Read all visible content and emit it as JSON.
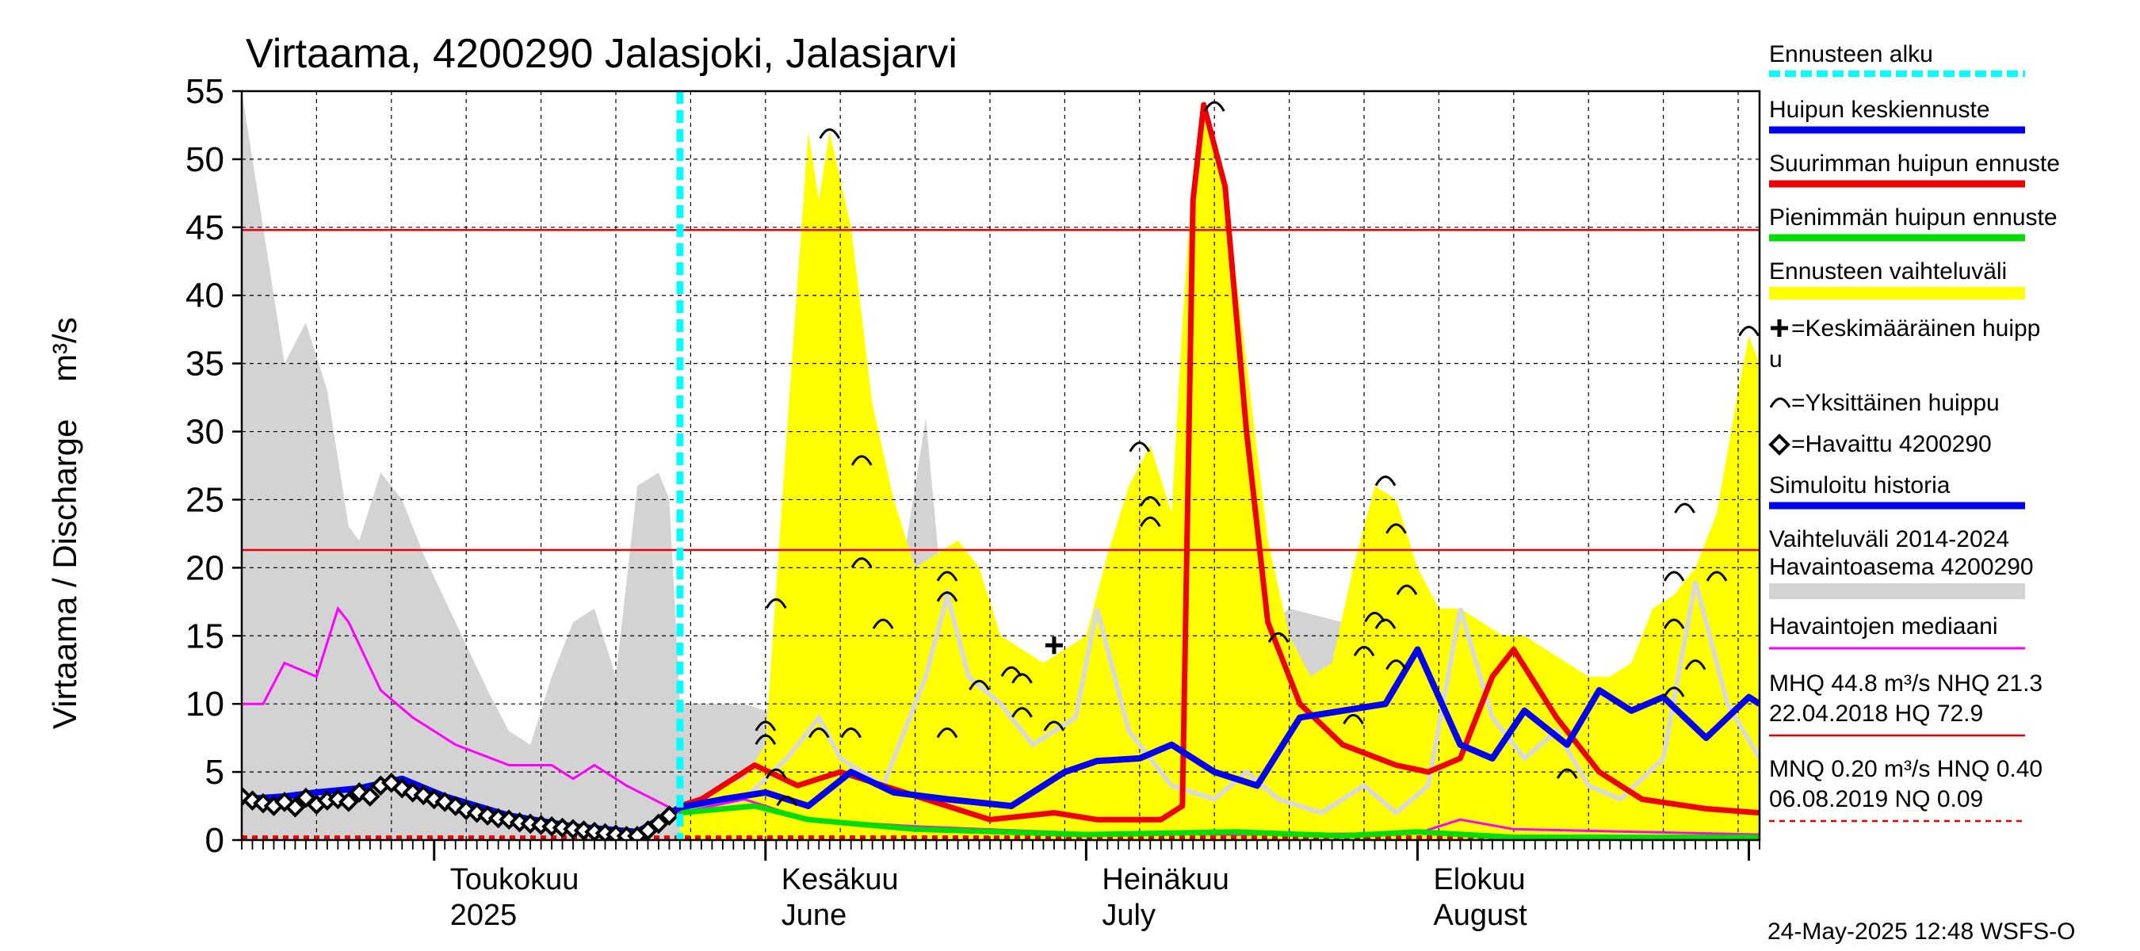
{
  "chart_data": {
    "type": "area",
    "title": "Virtaama, 4200290 Jalasjoki, Jalasjarvi",
    "ylabel": "Virtaama / Discharge    m³/s",
    "ylim": [
      0,
      55
    ],
    "y_ticks": [
      0,
      5,
      10,
      15,
      20,
      25,
      30,
      35,
      40,
      45,
      50,
      55
    ],
    "xlim": [
      "2025-04-13",
      "2025-09-02"
    ],
    "x_month_labels": [
      {
        "date": "2025-05-01",
        "line1": "Toukokuu",
        "line2": "2025"
      },
      {
        "date": "2025-06-01",
        "line1": "Kesäkuu",
        "line2": "June"
      },
      {
        "date": "2025-07-01",
        "line1": "Heinäkuu",
        "line2": "July"
      },
      {
        "date": "2025-08-01",
        "line1": "Elokuu",
        "line2": "August"
      }
    ],
    "grid": true,
    "forecast_start": "2025-05-24",
    "reference_lines": {
      "MHQ": 44.8,
      "NHQ": 21.3,
      "MNQ": 0.2
    },
    "history_range_2014_2024": [
      [
        "2025-04-13",
        55
      ],
      [
        "2025-04-15",
        45
      ],
      [
        "2025-04-17",
        35
      ],
      [
        "2025-04-19",
        38
      ],
      [
        "2025-04-21",
        33
      ],
      [
        "2025-04-23",
        23
      ],
      [
        "2025-04-24",
        22
      ],
      [
        "2025-04-26",
        27
      ],
      [
        "2025-04-28",
        25
      ],
      [
        "2025-04-30",
        21
      ],
      [
        "2025-05-03",
        16
      ],
      [
        "2025-05-06",
        11
      ],
      [
        "2025-05-08",
        8
      ],
      [
        "2025-05-10",
        7
      ],
      [
        "2025-05-12",
        12
      ],
      [
        "2025-05-14",
        16
      ],
      [
        "2025-05-16",
        17
      ],
      [
        "2025-05-18",
        12
      ],
      [
        "2025-05-20",
        26
      ],
      [
        "2025-05-22",
        27
      ],
      [
        "2025-05-23",
        25
      ],
      [
        "2025-05-24",
        10
      ],
      [
        "2025-05-27",
        10
      ],
      [
        "2025-05-30",
        10
      ],
      [
        "2025-06-03",
        9
      ],
      [
        "2025-06-07",
        8
      ],
      [
        "2025-06-10",
        13
      ],
      [
        "2025-06-12",
        22
      ],
      [
        "2025-06-14",
        21
      ],
      [
        "2025-06-16",
        31
      ],
      [
        "2025-06-18",
        14
      ],
      [
        "2025-06-22",
        12
      ],
      [
        "2025-06-26",
        10
      ],
      [
        "2025-07-01",
        14
      ],
      [
        "2025-07-05",
        22
      ],
      [
        "2025-07-10",
        18
      ],
      [
        "2025-07-15",
        14
      ],
      [
        "2025-07-20",
        17
      ],
      [
        "2025-07-25",
        16
      ],
      [
        "2025-07-30",
        12
      ],
      [
        "2025-08-05",
        10
      ],
      [
        "2025-08-10",
        8
      ],
      [
        "2025-08-15",
        11
      ],
      [
        "2025-08-20",
        7
      ],
      [
        "2025-08-25",
        6
      ],
      [
        "2025-09-02",
        4
      ]
    ],
    "forecast_range": [
      [
        "2025-05-24",
        1.8
      ],
      [
        "2025-05-26",
        3
      ],
      [
        "2025-05-28",
        4
      ],
      [
        "2025-05-30",
        4.5
      ],
      [
        "2025-06-01",
        7
      ],
      [
        "2025-06-03",
        30
      ],
      [
        "2025-06-05",
        52
      ],
      [
        "2025-06-06",
        47
      ],
      [
        "2025-06-07",
        52
      ],
      [
        "2025-06-09",
        45
      ],
      [
        "2025-06-11",
        32
      ],
      [
        "2025-06-13",
        25
      ],
      [
        "2025-06-15",
        20
      ],
      [
        "2025-06-17",
        21
      ],
      [
        "2025-06-19",
        22
      ],
      [
        "2025-06-21",
        20
      ],
      [
        "2025-06-23",
        15
      ],
      [
        "2025-06-25",
        14
      ],
      [
        "2025-06-27",
        13
      ],
      [
        "2025-06-29",
        14
      ],
      [
        "2025-07-01",
        15
      ],
      [
        "2025-07-03",
        21
      ],
      [
        "2025-07-05",
        26
      ],
      [
        "2025-07-07",
        29
      ],
      [
        "2025-07-09",
        24
      ],
      [
        "2025-07-10",
        38
      ],
      [
        "2025-07-11",
        49
      ],
      [
        "2025-07-12",
        54
      ],
      [
        "2025-07-14",
        48
      ],
      [
        "2025-07-16",
        35
      ],
      [
        "2025-07-18",
        22
      ],
      [
        "2025-07-20",
        15
      ],
      [
        "2025-07-22",
        12
      ],
      [
        "2025-07-24",
        13
      ],
      [
        "2025-07-26",
        20
      ],
      [
        "2025-07-28",
        26
      ],
      [
        "2025-07-30",
        25
      ],
      [
        "2025-08-01",
        20
      ],
      [
        "2025-08-03",
        17
      ],
      [
        "2025-08-05",
        17
      ],
      [
        "2025-08-07",
        16
      ],
      [
        "2025-08-09",
        15
      ],
      [
        "2025-08-11",
        15
      ],
      [
        "2025-08-13",
        14
      ],
      [
        "2025-08-15",
        13
      ],
      [
        "2025-08-17",
        12
      ],
      [
        "2025-08-19",
        12
      ],
      [
        "2025-08-21",
        13
      ],
      [
        "2025-08-23",
        17
      ],
      [
        "2025-08-25",
        18
      ],
      [
        "2025-08-27",
        20
      ],
      [
        "2025-08-29",
        24
      ],
      [
        "2025-08-31",
        33
      ],
      [
        "2025-09-01",
        37
      ],
      [
        "2025-09-02",
        35
      ]
    ],
    "observed": [
      [
        "2025-04-13",
        3.2
      ],
      [
        "2025-04-14",
        2.9
      ],
      [
        "2025-04-15",
        2.7
      ],
      [
        "2025-04-16",
        2.5
      ],
      [
        "2025-04-17",
        2.8
      ],
      [
        "2025-04-18",
        2.4
      ],
      [
        "2025-04-19",
        3.1
      ],
      [
        "2025-04-20",
        2.6
      ],
      [
        "2025-04-21",
        2.9
      ],
      [
        "2025-04-22",
        3.0
      ],
      [
        "2025-04-23",
        2.8
      ],
      [
        "2025-04-24",
        3.5
      ],
      [
        "2025-04-25",
        3.2
      ],
      [
        "2025-04-26",
        4.0
      ],
      [
        "2025-04-27",
        4.2
      ],
      [
        "2025-04-28",
        3.8
      ],
      [
        "2025-04-29",
        3.5
      ],
      [
        "2025-04-30",
        3.3
      ],
      [
        "2025-05-01",
        3.0
      ],
      [
        "2025-05-02",
        2.8
      ],
      [
        "2025-05-03",
        2.5
      ],
      [
        "2025-05-04",
        2.2
      ],
      [
        "2025-05-05",
        2.0
      ],
      [
        "2025-05-06",
        1.8
      ],
      [
        "2025-05-07",
        1.6
      ],
      [
        "2025-05-08",
        1.5
      ],
      [
        "2025-05-09",
        1.3
      ],
      [
        "2025-05-10",
        1.2
      ],
      [
        "2025-05-11",
        1.1
      ],
      [
        "2025-05-12",
        1.0
      ],
      [
        "2025-05-13",
        0.9
      ],
      [
        "2025-05-14",
        0.8
      ],
      [
        "2025-05-15",
        0.7
      ],
      [
        "2025-05-16",
        0.6
      ],
      [
        "2025-05-17",
        0.5
      ],
      [
        "2025-05-18",
        0.4
      ],
      [
        "2025-05-19",
        0.3
      ],
      [
        "2025-05-20",
        0.3
      ],
      [
        "2025-05-21",
        0.7
      ],
      [
        "2025-05-22",
        1.2
      ],
      [
        "2025-05-23",
        1.8
      ]
    ]
  },
  "legend": {
    "ennusteen_alku": "Ennusteen alku",
    "huipun_keskiennuste": "Huipun keskiennuste",
    "suurimman": "Suurimman huipun ennuste",
    "pienimman": "Pienimmän huipun ennuste",
    "vaihteluvali": "Ennusteen vaihteluväli",
    "keskimaarainen_l1": "=Keskimääräinen huipp",
    "keskimaarainen_l2": "u",
    "yksittainen": "=Yksittäinen huippu",
    "havaittu": "=Havaittu 4200290",
    "simuloitu": "Simuloitu historia",
    "vaihteluvali_hist_l1": "Vaihteluväli 2014-2024",
    "vaihteluvali_hist_l2": " Havaintoasema 4200290",
    "mediaani": "Havaintojen mediaani",
    "mhq_l1": "MHQ 44.8 m³/s NHQ 21.3",
    "mhq_l2": "22.04.2018 HQ 72.9",
    "mnq_l1": "MNQ 0.20 m³/s HNQ 0.40",
    "mnq_l2": "06.08.2019 NQ 0.09"
  },
  "footer": "24-May-2025 12:48 WSFS-O",
  "colors": {
    "yellow": "#ffff00",
    "grey": "#d3d3d3",
    "red": "#ee0000",
    "blue": "#0000ee",
    "green": "#00dd00",
    "cyan": "#00ffff",
    "magenta": "#ff00ff",
    "lightgrey_line": "#d9d9d9"
  }
}
